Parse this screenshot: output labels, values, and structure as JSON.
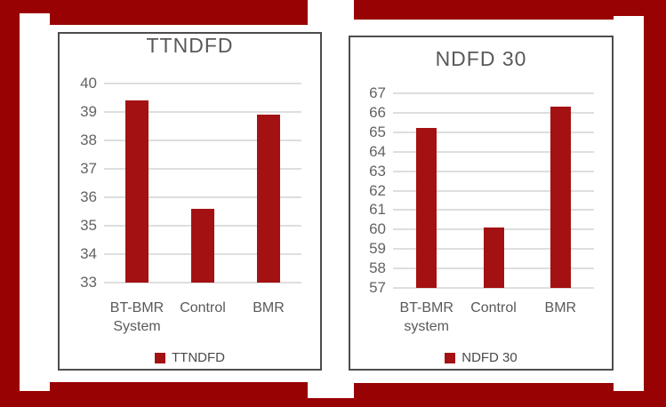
{
  "page": {
    "background_color": "#990202",
    "panel_color": "#ffffff",
    "frame_border_color": "#4d4d4d",
    "gridline_color": "#dedede",
    "text_color": "#595959"
  },
  "chart_data": [
    {
      "type": "bar",
      "title": "TTNDFD",
      "categories": [
        "BT-BMR System",
        "Control",
        "BMR"
      ],
      "values": [
        39.4,
        35.6,
        38.9
      ],
      "xlabel": "",
      "ylabel": "",
      "ylim": [
        33,
        40
      ],
      "ytick_step": 1,
      "grid": true,
      "legend": "TTNDFD",
      "legend_position": "bottom",
      "bar_color": "#a41113"
    },
    {
      "type": "bar",
      "title": "NDFD 30",
      "categories": [
        "BT-BMR system",
        "Control",
        "BMR"
      ],
      "values": [
        65.2,
        60.1,
        66.3
      ],
      "xlabel": "",
      "ylabel": "",
      "ylim": [
        57,
        67
      ],
      "ytick_step": 1,
      "grid": true,
      "legend": "NDFD 30",
      "legend_position": "bottom",
      "bar_color": "#a41113"
    }
  ]
}
